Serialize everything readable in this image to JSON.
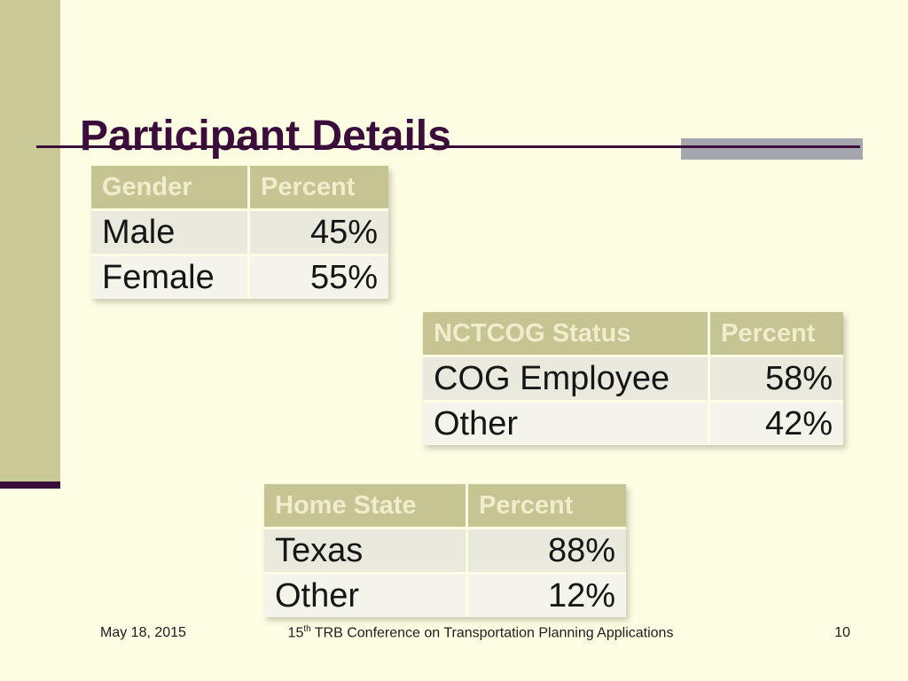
{
  "slide": {
    "title": "Participant Details",
    "footer": {
      "date": "May 18, 2015",
      "conference_prefix": "15",
      "conference_sup": "th",
      "conference_rest": " TRB Conference on Transportation Planning Applications",
      "page_number": "10"
    },
    "colors": {
      "background": "#fdfde3",
      "sidebar_olive": "#c9c998",
      "accent_maroon": "#3a0d3a",
      "accent_gray": "#a6a6af",
      "table_header_olive": "#c5c593",
      "table_header_text": "#efedcb",
      "table_row_dark": "#e9e9dd",
      "table_row_light": "#f4f4ea"
    }
  },
  "tables": [
    {
      "name": "Gender",
      "headers": [
        "Gender",
        "Percent"
      ],
      "rows": [
        [
          "Male",
          "45%"
        ],
        [
          "Female",
          "55%"
        ]
      ]
    },
    {
      "name": "NCTCOG Status",
      "headers": [
        "NCTCOG Status",
        "Percent"
      ],
      "rows": [
        [
          "COG Employee",
          "58%"
        ],
        [
          "Other",
          "42%"
        ]
      ]
    },
    {
      "name": "Home State",
      "headers": [
        "Home State",
        "Percent"
      ],
      "rows": [
        [
          "Texas",
          "88%"
        ],
        [
          "Other",
          "12%"
        ]
      ]
    }
  ]
}
